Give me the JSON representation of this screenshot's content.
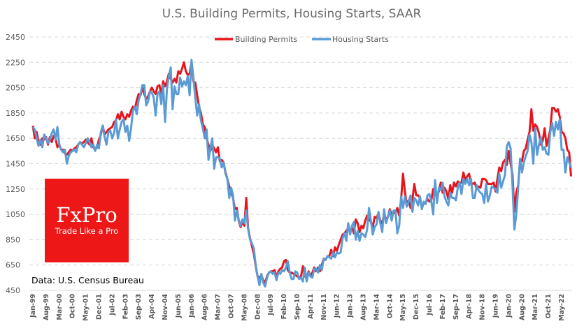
{
  "chart_data": {
    "type": "line",
    "title": "U.S. Building Permits, Housing Starts, SAAR",
    "xlabel": "",
    "ylabel": "",
    "ylim": [
      450,
      2450
    ],
    "yticks": [
      450,
      650,
      850,
      1050,
      1250,
      1450,
      1650,
      1850,
      2050,
      2250,
      2450
    ],
    "grid": true,
    "legend_position": "top-center",
    "x_start": "Jan-99",
    "x_frequency": "monthly",
    "x_tick_labels": [
      "Jan-99",
      "Aug-99",
      "Mar-00",
      "Oct-00",
      "May-01",
      "Dec-01",
      "Jul-02",
      "Feb-03",
      "Sep-03",
      "Apr-04",
      "Nov-04",
      "Jun-05",
      "Jan-06",
      "Aug-06",
      "Mar-07",
      "Oct-07",
      "May-08",
      "Dec-08",
      "Jul-09",
      "Feb-10",
      "Sep-10",
      "Apr-11",
      "Nov-11",
      "Jun-12",
      "Jan-13",
      "Aug-13",
      "Mar-14",
      "Oct-14",
      "May-15",
      "Dec-15",
      "Jul-16",
      "Feb-17",
      "Sep-17",
      "Apr-18",
      "Nov-18",
      "Jun-19",
      "Jan-20",
      "Aug-20",
      "Mar-21",
      "Oct-21",
      "May-22"
    ],
    "x_tick_step_months": 7,
    "series": [
      {
        "name": "Building Permits",
        "color": "#e8141c",
        "values": [
          1750,
          1650,
          1700,
          1620,
          1600,
          1650,
          1640,
          1660,
          1600,
          1660,
          1620,
          1670,
          1650,
          1580,
          1600,
          1560,
          1560,
          1530,
          1520,
          1540,
          1560,
          1550,
          1570,
          1580,
          1600,
          1620,
          1610,
          1620,
          1640,
          1620,
          1600,
          1650,
          1580,
          1560,
          1580,
          1640,
          1680,
          1750,
          1680,
          1700,
          1720,
          1730,
          1740,
          1780,
          1790,
          1840,
          1800,
          1860,
          1820,
          1800,
          1840,
          1820,
          1870,
          1900,
          1880,
          1950,
          2000,
          1990,
          2050,
          2000,
          1960,
          1980,
          2020,
          2050,
          2020,
          2000,
          2060,
          2070,
          2000,
          2100,
          2060,
          2100,
          2160,
          2120,
          2090,
          2120,
          2090,
          2180,
          2160,
          2200,
          2250,
          2180,
          2150,
          2160,
          2250,
          2100,
          2090,
          1990,
          1900,
          1850,
          1760,
          1740,
          1650,
          1600,
          1550,
          1600,
          1570,
          1540,
          1580,
          1470,
          1480,
          1460,
          1380,
          1330,
          1270,
          1230,
          1180,
          1090,
          1100,
          1000,
          950,
          990,
          960,
          1180,
          940,
          860,
          800,
          740,
          640,
          560,
          550,
          570,
          530,
          510,
          560,
          590,
          600,
          600,
          610,
          560,
          600,
          620,
          630,
          680,
          690,
          610,
          590,
          590,
          580,
          570,
          560,
          550,
          560,
          640,
          570,
          540,
          600,
          560,
          590,
          630,
          600,
          630,
          600,
          650,
          700,
          690,
          720,
          720,
          770,
          720,
          790,
          760,
          810,
          850,
          890,
          900,
          920,
          940,
          920,
          950,
          900,
          1010,
          980,
          910,
          960,
          940,
          1000,
          1040,
          1010,
          990,
          950,
          1030,
          1020,
          1060,
          1000,
          980,
          1050,
          1010,
          1030,
          1090,
          1050,
          1060,
          1060,
          1100,
          1040,
          1170,
          1370,
          1230,
          1130,
          1160,
          1100,
          1170,
          1290,
          1200,
          1200,
          1180,
          1100,
          1140,
          1140,
          1170,
          1150,
          1160,
          1250,
          1250,
          1200,
          1230,
          1300,
          1220,
          1260,
          1230,
          1170,
          1280,
          1220,
          1300,
          1270,
          1310,
          1300,
          1300,
          1380,
          1320,
          1350,
          1370,
          1300,
          1290,
          1300,
          1250,
          1270,
          1260,
          1330,
          1330,
          1320,
          1290,
          1290,
          1290,
          1300,
          1230,
          1330,
          1420,
          1390,
          1460,
          1480,
          1440,
          1550,
          1450,
          1360,
          1070,
          1220,
          1280,
          1480,
          1470,
          1550,
          1570,
          1640,
          1700,
          1880,
          1710,
          1760,
          1740,
          1690,
          1600,
          1630,
          1730,
          1590,
          1650,
          1720,
          1890,
          1890,
          1860,
          1880,
          1820,
          1700,
          1690,
          1650,
          1560,
          1540,
          1350
        ]
      },
      {
        "name": "Housing Starts",
        "color": "#5b9bd5",
        "values": [
          1740,
          1720,
          1650,
          1590,
          1640,
          1580,
          1680,
          1650,
          1610,
          1640,
          1690,
          1720,
          1640,
          1740,
          1600,
          1560,
          1540,
          1560,
          1450,
          1510,
          1540,
          1550,
          1560,
          1540,
          1600,
          1620,
          1600,
          1580,
          1610,
          1650,
          1620,
          1580,
          1600,
          1550,
          1600,
          1570,
          1700,
          1750,
          1660,
          1600,
          1700,
          1710,
          1650,
          1690,
          1800,
          1650,
          1720,
          1780,
          1800,
          1700,
          1750,
          1630,
          1730,
          1870,
          1900,
          1840,
          1950,
          2000,
          2070,
          2070,
          1910,
          1940,
          2020,
          2010,
          1970,
          1830,
          2000,
          2020,
          1920,
          2070,
          1780,
          2040,
          2140,
          2210,
          1880,
          2060,
          2000,
          2000,
          2130,
          2060,
          2100,
          2070,
          2140,
          1990,
          2270,
          2130,
          1970,
          1830,
          1920,
          1790,
          1730,
          1650,
          1720,
          1480,
          1570,
          1650,
          1410,
          1500,
          1500,
          1490,
          1420,
          1460,
          1370,
          1330,
          1180,
          1260,
          1200,
          1000,
          1080,
          1010,
          960,
          1010,
          980,
          1080,
          930,
          850,
          820,
          780,
          650,
          560,
          490,
          580,
          510,
          480,
          550,
          590,
          600,
          580,
          590,
          530,
          590,
          580,
          610,
          600,
          630,
          680,
          590,
          540,
          540,
          600,
          590,
          540,
          550,
          520,
          630,
          520,
          590,
          560,
          550,
          620,
          620,
          590,
          650,
          610,
          700,
          690,
          720,
          710,
          700,
          750,
          710,
          750,
          740,
          750,
          860,
          900,
          840,
          980,
          890,
          960,
          990,
          850,
          920,
          840,
          900,
          890,
          870,
          930,
          1100,
          1000,
          890,
          950,
          970,
          1070,
          980,
          910,
          1090,
          980,
          1030,
          1080,
          1000,
          1080,
          1080,
          900,
          960,
          1190,
          1100,
          1190,
          1110,
          1150,
          1200,
          1070,
          1180,
          1160,
          1120,
          1190,
          1090,
          1150,
          1130,
          1200,
          1210,
          1150,
          1050,
          1320,
          1140,
          1260,
          1240,
          1300,
          1190,
          1150,
          1120,
          1220,
          1180,
          1180,
          1160,
          1260,
          1300,
          1210,
          1330,
          1290,
          1330,
          1280,
          1330,
          1180,
          1180,
          1280,
          1240,
          1220,
          1210,
          1140,
          1290,
          1150,
          1200,
          1270,
          1260,
          1250,
          1220,
          1370,
          1260,
          1310,
          1360,
          1590,
          1620,
          1570,
          1270,
          930,
          1050,
          1260,
          1490,
          1380,
          1460,
          1510,
          1550,
          1680,
          1620,
          1450,
          1730,
          1520,
          1600,
          1660,
          1560,
          1580,
          1530,
          1520,
          1700,
          1770,
          1670,
          1780,
          1720,
          1800,
          1560,
          1560,
          1380,
          1500,
          1460,
          1420
        ]
      }
    ],
    "annotations": [
      "Data: U.S. Census Bureau"
    ]
  },
  "logo": {
    "name": "FxPro",
    "tagline": "Trade Like a Pro",
    "color": "#ee1717"
  }
}
